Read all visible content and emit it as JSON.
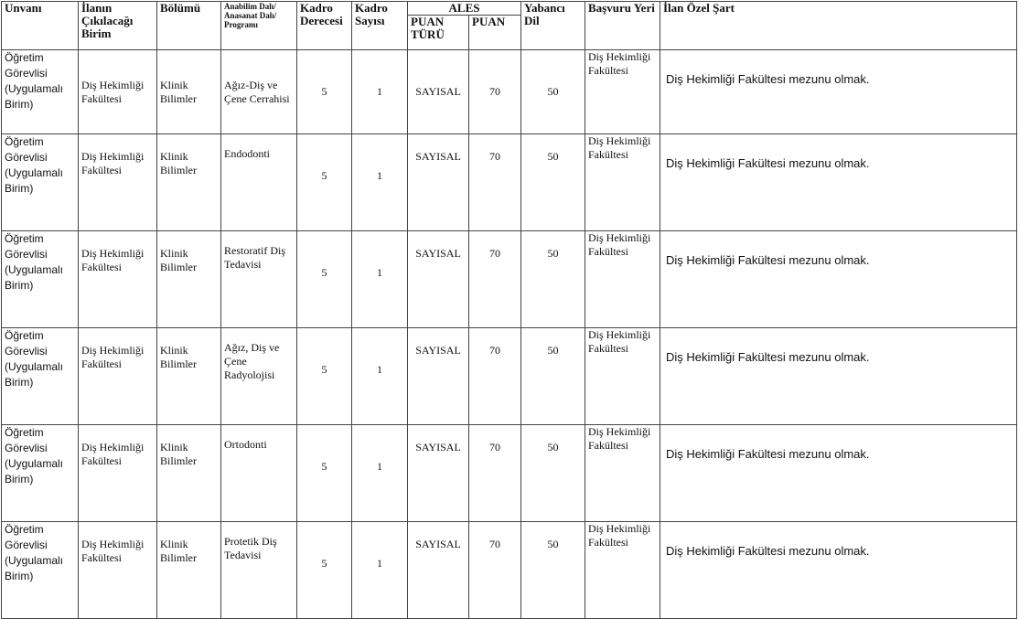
{
  "headers": {
    "unvani": "Unvanı",
    "birim": "İlanın Çıkılacağı Birim",
    "bolumu": "Bölümü",
    "anabilim": "Anabilim Dalı/ Anasanat Dalı/ Programı",
    "kadro_derecesi": "Kadro Derecesi",
    "kadro_sayisi": "Kadro Sayısı",
    "ales": "ALES",
    "puan_turu": "PUAN TÜRÜ",
    "puan": "PUAN",
    "yabanci_dil": "Yabancı Dil",
    "basvuru_yeri": "Başvuru Yeri",
    "ozel_sart": "İlan Özel Şart"
  },
  "rows": [
    {
      "unvani": "Öğretim Görevlisi (Uygulamalı Birim)",
      "birim": "Diş Hekimliği Fakültesi",
      "bolumu": "Klinik Bilimler",
      "anabilim": "Ağız-Diş ve Çene Cerrahisi",
      "kadro_derecesi": "5",
      "kadro_sayisi": "1",
      "puan_turu": "SAYISAL",
      "puan": "70",
      "yabanci_dil": "50",
      "basvuru_yeri": "Diş Hekimliği Fakültesi",
      "ozel_sart": "Diş Hekimliği Fakültesi mezunu olmak."
    },
    {
      "unvani": "Öğretim Görevlisi (Uygulamalı Birim)",
      "birim": "Diş Hekimliği Fakültesi",
      "bolumu": "Klinik Bilimler",
      "anabilim": "Endodonti",
      "kadro_derecesi": "5",
      "kadro_sayisi": "1",
      "puan_turu": "SAYISAL",
      "puan": "70",
      "yabanci_dil": "50",
      "basvuru_yeri": "Diş Hekimliği Fakültesi",
      "ozel_sart": "Diş Hekimliği Fakültesi mezunu olmak."
    },
    {
      "unvani": "Öğretim Görevlisi (Uygulamalı Birim)",
      "birim": "Diş Hekimliği Fakültesi",
      "bolumu": "Klinik Bilimler",
      "anabilim": "Restoratif Diş Tedavisi",
      "kadro_derecesi": "5",
      "kadro_sayisi": "1",
      "puan_turu": "SAYISAL",
      "puan": "70",
      "yabanci_dil": "50",
      "basvuru_yeri": "Diş Hekimliği Fakültesi",
      "ozel_sart": "Diş Hekimliği Fakültesi mezunu olmak."
    },
    {
      "unvani": "Öğretim Görevlisi (Uygulamalı Birim)",
      "birim": "Diş Hekimliği Fakültesi",
      "bolumu": "Klinik Bilimler",
      "anabilim": "Ağız, Diş ve Çene Radyolojisi",
      "kadro_derecesi": "5",
      "kadro_sayisi": "1",
      "puan_turu": "SAYISAL",
      "puan": "70",
      "yabanci_dil": "50",
      "basvuru_yeri": "Diş Hekimliği Fakültesi",
      "ozel_sart": "Diş Hekimliği Fakültesi mezunu olmak."
    },
    {
      "unvani": "Öğretim Görevlisi (Uygulamalı Birim)",
      "birim": "Diş Hekimliği Fakültesi",
      "bolumu": "Klinik Bilimler",
      "anabilim": "Ortodonti",
      "kadro_derecesi": "5",
      "kadro_sayisi": "1",
      "puan_turu": "SAYISAL",
      "puan": "70",
      "yabanci_dil": "50",
      "basvuru_yeri": "Diş Hekimliği Fakültesi",
      "ozel_sart": "Diş Hekimliği Fakültesi mezunu olmak."
    },
    {
      "unvani": "Öğretim Görevlisi (Uygulamalı Birim)",
      "birim": "Diş Hekimliği Fakültesi",
      "bolumu": "Klinik Bilimler",
      "anabilim": "Protetik Diş Tedavisi",
      "kadro_derecesi": "5",
      "kadro_sayisi": "1",
      "puan_turu": "SAYISAL",
      "puan": "70",
      "yabanci_dil": "50",
      "basvuru_yeri": "Diş Hekimliği Fakültesi",
      "ozel_sart": "Diş Hekimliği Fakültesi mezunu olmak."
    }
  ]
}
